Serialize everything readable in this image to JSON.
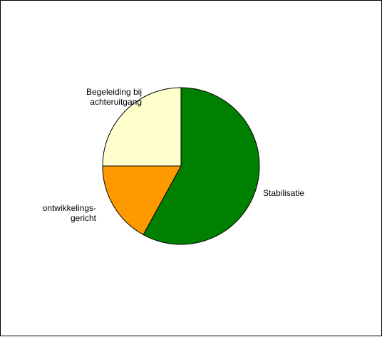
{
  "chart_data": {
    "type": "pie",
    "title": "",
    "slices": [
      {
        "label_lines": [
          "Stabilisatie"
        ],
        "value": 58,
        "color": "#008000"
      },
      {
        "label_lines": [
          "ontwikkelings-",
          "gericht"
        ],
        "value": 17,
        "color": "#FF9900"
      },
      {
        "label_lines": [
          "Begeleiding bij",
          "achteruitgang"
        ],
        "value": 25,
        "color": "#FFFFCC"
      }
    ],
    "start_angle_deg": 0,
    "direction": "clockwise",
    "legend": "none"
  }
}
